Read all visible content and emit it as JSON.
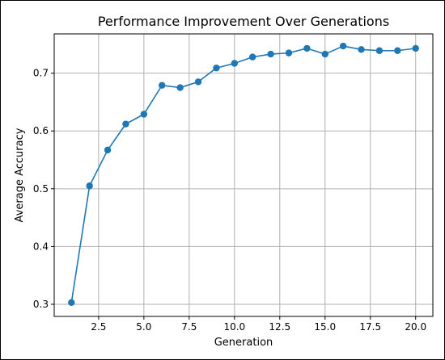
{
  "chart_data": {
    "type": "line",
    "title": "Performance Improvement Over Generations",
    "xlabel": "Generation",
    "ylabel": "Average Accuracy",
    "xlim": [
      0.05,
      20.95
    ],
    "ylim": [
      0.279,
      0.768
    ],
    "xticks": [
      2.5,
      5.0,
      7.5,
      10.0,
      12.5,
      15.0,
      17.5,
      20.0
    ],
    "xtick_labels": [
      "2.5",
      "5.0",
      "7.5",
      "10.0",
      "12.5",
      "15.0",
      "17.5",
      "20.0"
    ],
    "yticks": [
      0.3,
      0.4,
      0.5,
      0.6,
      0.7
    ],
    "ytick_labels": [
      "0.3",
      "0.4",
      "0.5",
      "0.6",
      "0.7"
    ],
    "grid": true,
    "series": [
      {
        "color": "#1f77b4",
        "marker": "circle",
        "x": [
          1,
          2,
          3,
          4,
          5,
          6,
          7,
          8,
          9,
          10,
          11,
          12,
          13,
          14,
          15,
          16,
          17,
          18,
          19,
          20
        ],
        "y": [
          0.303,
          0.505,
          0.567,
          0.612,
          0.629,
          0.679,
          0.675,
          0.685,
          0.709,
          0.717,
          0.728,
          0.733,
          0.735,
          0.743,
          0.733,
          0.747,
          0.741,
          0.739,
          0.739,
          0.743
        ]
      }
    ]
  }
}
